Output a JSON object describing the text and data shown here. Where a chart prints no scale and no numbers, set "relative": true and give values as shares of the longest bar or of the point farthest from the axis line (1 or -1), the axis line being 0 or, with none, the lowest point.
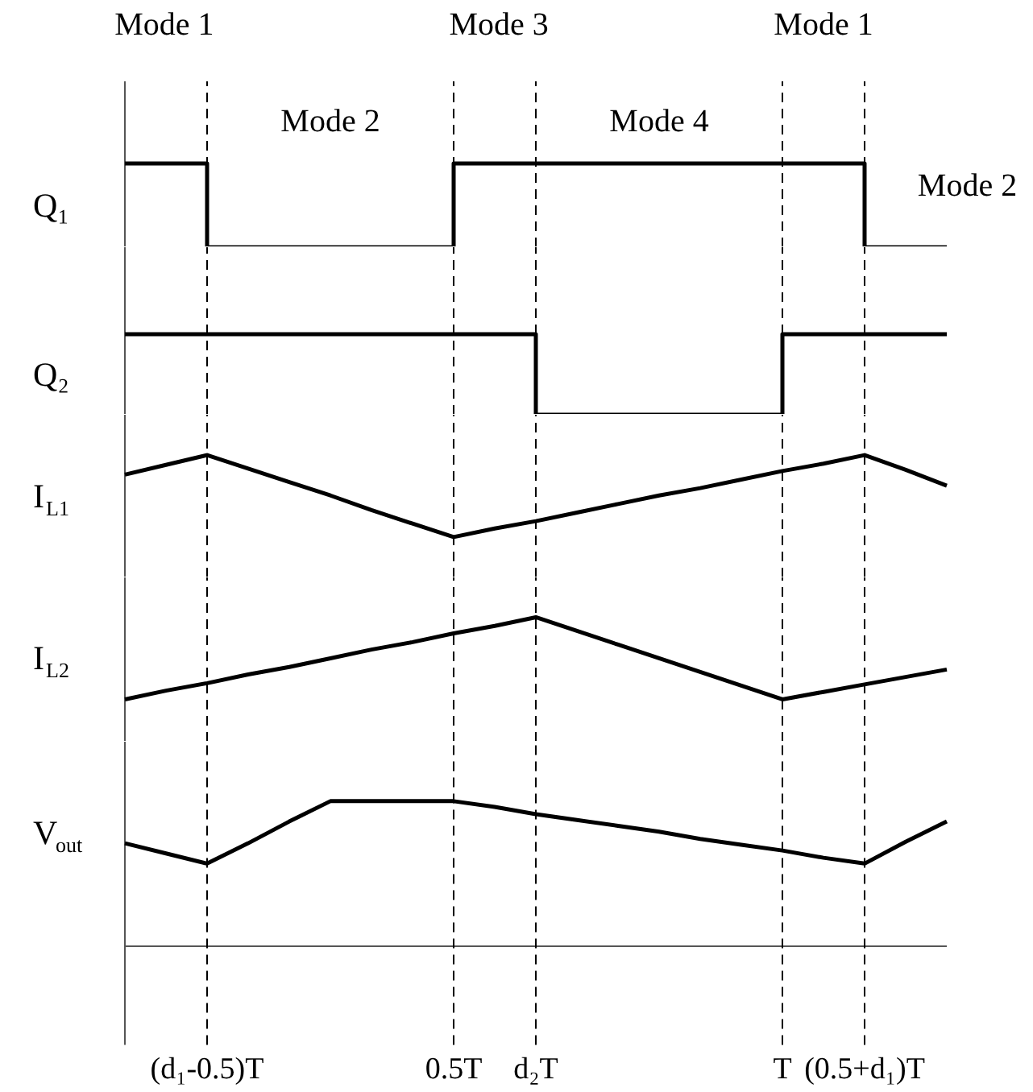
{
  "chart_data": [
    {
      "type": "step",
      "ylabel": "Q₁",
      "relative": true,
      "tick_labels": false,
      "categories": [
        null,
        null,
        "(d₁-0.5)T",
        null,
        null,
        null,
        null,
        null,
        "0.5T",
        null,
        "d₂T",
        null,
        null,
        null,
        null,
        null,
        "T",
        null,
        "(0.5+d₁)T",
        null,
        null
      ],
      "series": [
        {
          "color": "#000000",
          "values": [
            1,
            1,
            0,
            0,
            0,
            0,
            0,
            0,
            1,
            1,
            1,
            1,
            1,
            1,
            1,
            1,
            1,
            1,
            0,
            0,
            0
          ]
        }
      ],
      "ref_lines": [
        {
          "axis": "x",
          "value": "(d₁-0.5)T",
          "line_style": "dashed"
        },
        {
          "axis": "x",
          "value": "0.5T",
          "line_style": "dashed"
        },
        {
          "axis": "x",
          "value": "d₂T",
          "line_style": "dashed"
        },
        {
          "axis": "x",
          "value": "T",
          "line_style": "dashed"
        },
        {
          "axis": "x",
          "value": "(0.5+d₁)T",
          "line_style": "dashed"
        }
      ],
      "annotations": [
        "Mode 1",
        "Mode 3",
        "Mode 1",
        "Mode 2",
        "Mode 4",
        "Mode 2"
      ]
    },
    {
      "type": "step",
      "ylabel": "Q₂",
      "relative": true,
      "tick_labels": false,
      "categories": [
        null,
        null,
        "(d₁-0.5)T",
        null,
        null,
        null,
        null,
        null,
        "0.5T",
        null,
        "d₂T",
        null,
        null,
        null,
        null,
        null,
        "T",
        null,
        "(0.5+d₁)T",
        null,
        null
      ],
      "series": [
        {
          "color": "#000000",
          "values": [
            1,
            1,
            1,
            1,
            1,
            1,
            1,
            1,
            1,
            1,
            0,
            0,
            0,
            0,
            0,
            0,
            1,
            1,
            1,
            1,
            1
          ]
        }
      ],
      "ref_lines": [
        {
          "axis": "x",
          "value": "(d₁-0.5)T",
          "line_style": "dashed"
        },
        {
          "axis": "x",
          "value": "0.5T",
          "line_style": "dashed"
        },
        {
          "axis": "x",
          "value": "d₂T",
          "line_style": "dashed"
        },
        {
          "axis": "x",
          "value": "T",
          "line_style": "dashed"
        },
        {
          "axis": "x",
          "value": "(0.5+d₁)T",
          "line_style": "dashed"
        }
      ]
    },
    {
      "type": "line",
      "ylabel": "I$_{L1}$",
      "relative": true,
      "tick_labels": false,
      "categories": [
        null,
        null,
        "(d₁-0.5)T",
        null,
        null,
        null,
        null,
        null,
        "0.5T",
        null,
        "d₂T",
        null,
        null,
        null,
        null,
        null,
        "T",
        null,
        "(0.5+d₁)T",
        null,
        null
      ],
      "series": [
        {
          "color": "#000000",
          "values": [
            0.84,
            0.92,
            1,
            0.89,
            0.78,
            0.67,
            0.55,
            0.44,
            0.33,
            0.4,
            0.46,
            0.53,
            0.6,
            0.67,
            0.73,
            0.8,
            0.87,
            0.93,
            1,
            0.88,
            0.75
          ]
        }
      ],
      "ref_lines": [
        {
          "axis": "x",
          "value": "(d₁-0.5)T",
          "line_style": "dashed"
        },
        {
          "axis": "x",
          "value": "0.5T",
          "line_style": "dashed"
        },
        {
          "axis": "x",
          "value": "d₂T",
          "line_style": "dashed"
        },
        {
          "axis": "x",
          "value": "T",
          "line_style": "dashed"
        },
        {
          "axis": "x",
          "value": "(0.5+d₁)T",
          "line_style": "dashed"
        }
      ]
    },
    {
      "type": "line",
      "ylabel": "I$_{L2}$",
      "relative": true,
      "tick_labels": false,
      "categories": [
        null,
        null,
        "(d₁-0.5)T",
        null,
        null,
        null,
        null,
        null,
        "0.5T",
        null,
        "d₂T",
        null,
        null,
        null,
        null,
        null,
        "T",
        null,
        "(0.5+d₁)T",
        null,
        null
      ],
      "series": [
        {
          "color": "#000000",
          "values": [
            0.34,
            0.41,
            0.47,
            0.54,
            0.6,
            0.67,
            0.74,
            0.8,
            0.87,
            0.93,
            1,
            0.89,
            0.78,
            0.67,
            0.56,
            0.45,
            0.34,
            0.4,
            0.46,
            0.52,
            0.58
          ]
        }
      ],
      "ref_lines": [
        {
          "axis": "x",
          "value": "(d₁-0.5)T",
          "line_style": "dashed"
        },
        {
          "axis": "x",
          "value": "0.5T",
          "line_style": "dashed"
        },
        {
          "axis": "x",
          "value": "d₂T",
          "line_style": "dashed"
        },
        {
          "axis": "x",
          "value": "T",
          "line_style": "dashed"
        },
        {
          "axis": "x",
          "value": "(0.5+d₁)T",
          "line_style": "dashed"
        }
      ]
    },
    {
      "type": "line",
      "ylabel": "V$_{out}$",
      "relative": true,
      "categories": [
        null,
        null,
        "(d₁-0.5)T",
        null,
        null,
        null,
        null,
        null,
        "0.5T",
        null,
        "d₂T",
        null,
        null,
        null,
        null,
        null,
        "T",
        null,
        "(0.5+d₁)T",
        null,
        null
      ],
      "series": [
        {
          "color": "#000000",
          "values": [
            0.71,
            0.64,
            0.57,
            0.71,
            0.86,
            1,
            1,
            1,
            1,
            0.96,
            0.91,
            0.87,
            0.83,
            0.79,
            0.74,
            0.7,
            0.66,
            0.61,
            0.57,
            0.72,
            0.86
          ]
        }
      ],
      "ref_lines": [
        {
          "axis": "x",
          "value": "(d₁-0.5)T",
          "line_style": "dashed"
        },
        {
          "axis": "x",
          "value": "0.5T",
          "line_style": "dashed"
        },
        {
          "axis": "x",
          "value": "d₂T",
          "line_style": "dashed"
        },
        {
          "axis": "x",
          "value": "T",
          "line_style": "dashed"
        },
        {
          "axis": "x",
          "value": "(0.5+d₁)T",
          "line_style": "dashed"
        }
      ]
    }
  ]
}
